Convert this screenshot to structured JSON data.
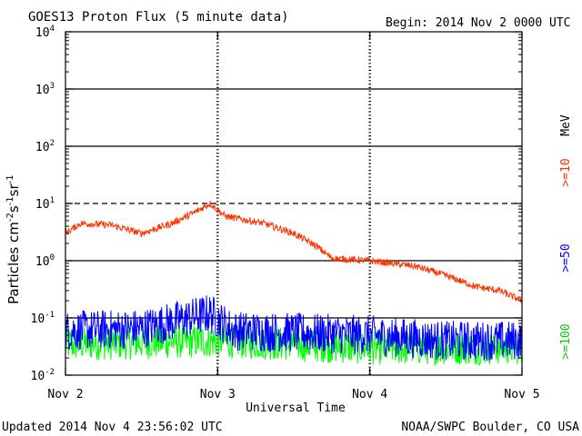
{
  "chart_data": {
    "type": "line",
    "title": "GOES13 Proton Flux (5 minute data)",
    "begin_label": "Begin: 2014 Nov 2 0000 UTC",
    "xlabel": "Universal Time",
    "ylabel_main": "Particles cm",
    "ylabel_sup1": "-2",
    "ylabel_mid1": "s",
    "ylabel_sup2": "-1",
    "ylabel_mid2": "sr",
    "ylabel_sup3": "-1",
    "x_ticks": [
      "Nov 2",
      "Nov 3",
      "Nov 4",
      "Nov 5"
    ],
    "x_range_days": [
      0,
      3
    ],
    "y_scale": "log",
    "y_range": [
      0.01,
      10000
    ],
    "y_ticks": [
      {
        "base": "10",
        "exp": "-2",
        "value": 0.01
      },
      {
        "base": "10",
        "exp": "-1",
        "value": 0.1
      },
      {
        "base": "10",
        "exp": "0",
        "value": 1
      },
      {
        "base": "10",
        "exp": "1",
        "value": 10
      },
      {
        "base": "10",
        "exp": "2",
        "value": 100
      },
      {
        "base": "10",
        "exp": "3",
        "value": 1000
      },
      {
        "base": "10",
        "exp": "4",
        "value": 10000
      }
    ],
    "reference_lines": [
      {
        "value": 10,
        "style": "dashed"
      },
      {
        "value": 0.1,
        "style": "solid"
      }
    ],
    "unit_label": "MeV",
    "series": [
      {
        "name": ">=10",
        "color": "#ff3300",
        "keyframes": [
          [
            0,
            3.0
          ],
          [
            0.1,
            4.5
          ],
          [
            0.3,
            4.2
          ],
          [
            0.5,
            3.0
          ],
          [
            0.7,
            4.5
          ],
          [
            0.85,
            7.0
          ],
          [
            0.95,
            10.0
          ],
          [
            1.05,
            6.0
          ],
          [
            1.3,
            4.5
          ],
          [
            1.5,
            3.0
          ],
          [
            1.65,
            1.8
          ],
          [
            1.75,
            1.1
          ],
          [
            2.0,
            1.0
          ],
          [
            2.3,
            0.8
          ],
          [
            2.5,
            0.55
          ],
          [
            2.7,
            0.35
          ],
          [
            2.85,
            0.3
          ],
          [
            3.0,
            0.2
          ]
        ],
        "noise": 0.06
      },
      {
        "name": ">=50",
        "color": "#0000ff",
        "keyframes": [
          [
            0,
            0.06
          ],
          [
            0.5,
            0.065
          ],
          [
            0.95,
            0.12
          ],
          [
            1.1,
            0.06
          ],
          [
            2.0,
            0.05
          ],
          [
            2.5,
            0.04
          ],
          [
            3.0,
            0.04
          ]
        ],
        "noise": 0.35
      },
      {
        "name": ">=100",
        "color": "#00ff00",
        "keyframes": [
          [
            0,
            0.035
          ],
          [
            1.0,
            0.04
          ],
          [
            2.0,
            0.03
          ],
          [
            3.0,
            0.03
          ]
        ],
        "noise": 0.3
      }
    ]
  },
  "footer": {
    "updated": "Updated 2014 Nov  4 23:56:02 UTC",
    "source": "NOAA/SWPC Boulder, CO USA"
  }
}
